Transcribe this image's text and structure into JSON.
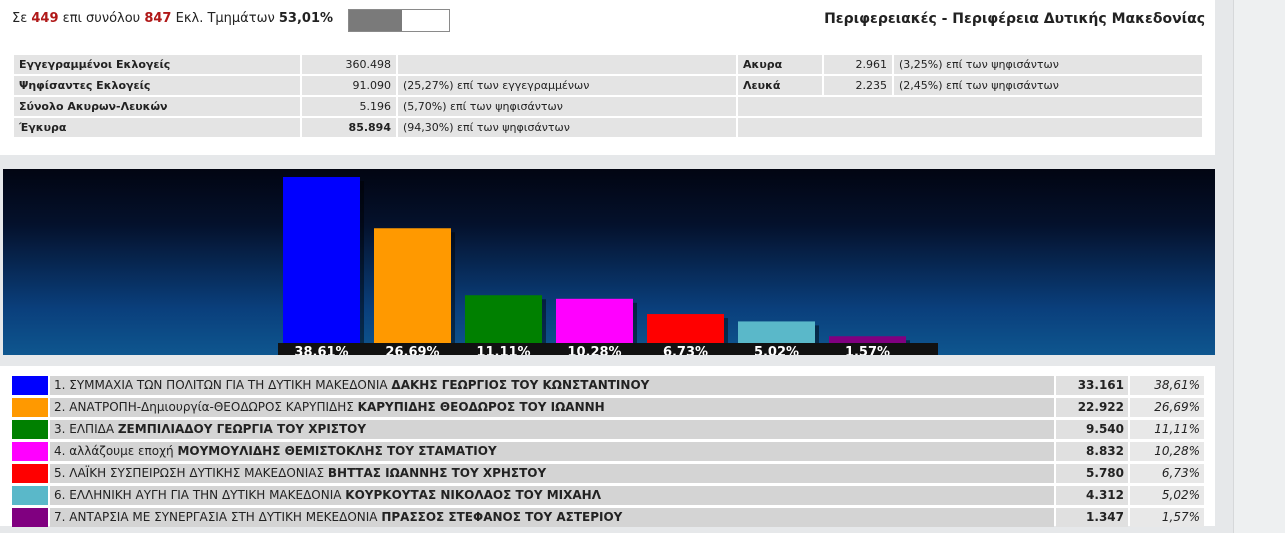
{
  "header": {
    "prefix": "Σε",
    "counted": "449",
    "mid": "επι συνόλου",
    "total": "847",
    "suffix": "Εκλ. Τμημάτων",
    "percent": "53,01%",
    "progress_fraction": 0.5301,
    "title": "Περιφερειακές - Περιφέρεια Δυτικής Μακεδονίας"
  },
  "stats": {
    "registered": {
      "label": "Εγγεγραμμένοι Εκλογείς",
      "value": "360.498"
    },
    "voted": {
      "label": "Ψηφίσαντες Εκλογείς",
      "value": "91.090",
      "pct": "(25,27%) επί των εγγεγραμμένων"
    },
    "invalid_blank": {
      "label": "Σύνολο Ακυρων-Λευκών",
      "value": "5.196",
      "pct": "(5,70%) επί των ψηφισάντων"
    },
    "valid": {
      "label": "Έγκυρα",
      "value": "85.894",
      "pct": "(94,30%) επί των ψηφισάντων"
    },
    "invalid": {
      "label": "Ακυρα",
      "value": "2.961",
      "pct": "(3,25%) επί των ψηφισάντων"
    },
    "blank": {
      "label": "Λευκά",
      "value": "2.235",
      "pct": "(2,45%) επί των ψηφισάντων"
    }
  },
  "chart_data": {
    "type": "bar",
    "categories": [
      "1",
      "2",
      "3",
      "4",
      "5",
      "6",
      "7"
    ],
    "values": [
      38.61,
      26.69,
      11.11,
      10.28,
      6.73,
      5.02,
      1.57
    ],
    "labels": [
      "38,61%",
      "26,69%",
      "11,11%",
      "10,28%",
      "6,73%",
      "5,02%",
      "1,57%"
    ],
    "colors": [
      "#0000ff",
      "#ff9900",
      "#008000",
      "#ff00ff",
      "#ff0000",
      "#5ab8c9",
      "#800080"
    ],
    "ylim": [
      0,
      38.61
    ],
    "grid": false
  },
  "parties": [
    {
      "num": "1.",
      "party": "ΣΥΜΜΑΧΙΑ ΤΩΝ ΠΟΛΙΤΩΝ ΓΙΑ ΤΗ ΔΥΤΙΚΗ ΜΑΚΕΔΟΝΙΑ",
      "leader": "ΔΑΚΗΣ ΓΕΩΡΓΙΟΣ ΤΟΥ ΚΩΝΣΤΑΝΤΙΝΟΥ",
      "votes": "33.161",
      "percent": "38,61%",
      "color": "#0000ff"
    },
    {
      "num": "2.",
      "party": "ΑΝΑΤΡΟΠΗ-Δημιουργία-ΘΕΟΔΩΡΟΣ ΚΑΡΥΠΙΔΗΣ",
      "leader": "ΚΑΡΥΠΙΔΗΣ ΘΕΟΔΩΡΟΣ ΤΟΥ ΙΩΑΝΝΗ",
      "votes": "22.922",
      "percent": "26,69%",
      "color": "#ff9900"
    },
    {
      "num": "3.",
      "party": "ΕΛΠΙΔΑ",
      "leader": "ΖΕΜΠΙΛΙΑΔΟΥ ΓΕΩΡΓΙΑ ΤΟΥ ΧΡΙΣΤΟΥ",
      "votes": "9.540",
      "percent": "11,11%",
      "color": "#008000"
    },
    {
      "num": "4.",
      "party": "αλλάζουμε εποχή",
      "leader": "ΜΟΥΜΟΥΛΙΔΗΣ ΘΕΜΙΣΤΟΚΛΗΣ ΤΟΥ ΣΤΑΜΑΤΙΟΥ",
      "votes": "8.832",
      "percent": "10,28%",
      "color": "#ff00ff"
    },
    {
      "num": "5.",
      "party": "ΛΑΪΚΗ ΣΥΣΠΕΙΡΩΣΗ ΔΥΤΙΚΗΣ ΜΑΚΕΔΟΝΙΑΣ",
      "leader": "ΒΗΤΤΑΣ ΙΩΑΝΝΗΣ ΤΟΥ ΧΡΗΣΤΟΥ",
      "votes": "5.780",
      "percent": "6,73%",
      "color": "#ff0000"
    },
    {
      "num": "6.",
      "party": "ΕΛΛΗΝΙΚΗ ΑΥΓΗ ΓΙΑ ΤΗΝ ΔΥΤΙΚΗ ΜΑΚΕΔΟΝΙΑ",
      "leader": "ΚΟΥΡΚΟΥΤΑΣ ΝΙΚΟΛΑΟΣ ΤΟΥ ΜΙΧΑΗΛ",
      "votes": "4.312",
      "percent": "5,02%",
      "color": "#5ab8c9"
    },
    {
      "num": "7.",
      "party": "ΑΝΤΑΡΣΙΑ ΜΕ ΣΥΝΕΡΓΑΣΙΑ ΣΤΗ ΔΥΤΙΚΗ ΜΕΚΕΔΟΝΙΑ",
      "leader": "ΠΡΑΣΣΟΣ ΣΤΕΦΑΝΟΣ ΤΟΥ ΑΣΤΕΡΙΟΥ",
      "votes": "1.347",
      "percent": "1,57%",
      "color": "#800080"
    }
  ]
}
